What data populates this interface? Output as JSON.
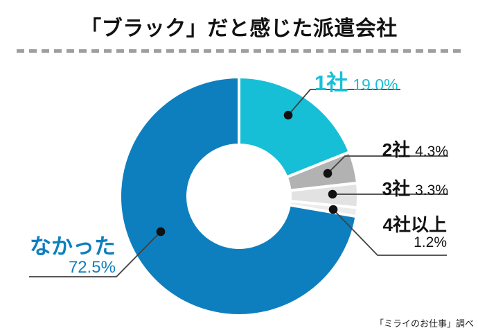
{
  "title": "「ブラック」だと感じた派遣会社",
  "source_note": "「ミライのお仕事」調べ",
  "colors": {
    "background": "#FFFFFF",
    "title_text": "#111111",
    "label_text": "#111111",
    "blue": "#0E7FBE",
    "cyan": "#17BFD6",
    "gray_medium": "#B2B2B2",
    "gray_light": "#E2E2E2",
    "gray_lighter": "#ECECEC",
    "callout_line": "#404040",
    "callout_dot": "#111111",
    "divider_dash": "#9E9E9E"
  },
  "chart_data": {
    "type": "pie",
    "subtype": "donut",
    "title": "「ブラック」だと感じた派遣会社",
    "unit": "%",
    "start_angle_deg": 0,
    "direction": "clockwise",
    "inner_radius_ratio": 0.45,
    "legend": "callout-labels",
    "segments": [
      {
        "key": "one-company",
        "label": "1社",
        "value": 19.0,
        "pct_label": "19.0%",
        "color": "#17BFD6"
      },
      {
        "key": "two-companies",
        "label": "2社",
        "value": 4.3,
        "pct_label": "4.3%",
        "color": "#B2B2B2"
      },
      {
        "key": "three-companies",
        "label": "3社",
        "value": 3.3,
        "pct_label": "3.3%",
        "color": "#E2E2E2"
      },
      {
        "key": "four-or-more",
        "label": "4社以上",
        "value": 1.2,
        "pct_label": "1.2%",
        "color": "#ECECEC"
      },
      {
        "key": "none",
        "label": "なかった",
        "value": 72.5,
        "pct_label": "72.5%",
        "color": "#0E7FBE"
      }
    ]
  }
}
